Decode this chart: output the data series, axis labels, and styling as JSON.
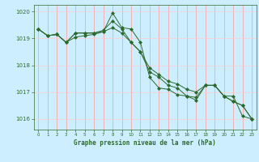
{
  "xlabel": "Graphe pression niveau de la mer (hPa)",
  "xlim": [
    -0.5,
    23.5
  ],
  "ylim": [
    1015.6,
    1020.25
  ],
  "yticks": [
    1016,
    1017,
    1018,
    1019,
    1020
  ],
  "xticks": [
    0,
    1,
    2,
    3,
    4,
    5,
    6,
    7,
    8,
    9,
    10,
    11,
    12,
    13,
    14,
    15,
    16,
    17,
    18,
    19,
    20,
    21,
    22,
    23
  ],
  "bg_color": "#cceeff",
  "grid_color_v": "#ff9999",
  "grid_color_h": "#ffcccc",
  "line_color": "#2d6a2d",
  "series_y": [
    [
      1019.35,
      1019.1,
      1019.15,
      1018.85,
      1019.05,
      1019.1,
      1019.15,
      1019.25,
      1019.95,
      1019.4,
      1019.35,
      1018.85,
      1017.55,
      1017.15,
      1017.1,
      1016.9,
      1016.85,
      1016.7,
      1017.25,
      1017.25,
      1016.85,
      1016.85,
      1016.1,
      1016.0
    ],
    [
      1019.35,
      1019.1,
      1019.15,
      1018.85,
      1019.2,
      1019.2,
      1019.2,
      1019.3,
      1019.65,
      1019.35,
      1018.85,
      1018.5,
      1017.75,
      1017.55,
      1017.25,
      1017.15,
      1016.85,
      1016.8,
      1017.25,
      1017.25,
      1016.85,
      1016.65,
      1016.5,
      1016.0
    ],
    [
      1019.35,
      1019.1,
      1019.15,
      1018.85,
      1019.2,
      1019.2,
      1019.2,
      1019.25,
      1019.4,
      1019.2,
      1018.85,
      1018.5,
      1017.9,
      1017.65,
      1017.4,
      1017.3,
      1017.1,
      1017.0,
      1017.25,
      1017.25,
      1016.85,
      1016.65,
      1016.5,
      1016.0
    ]
  ]
}
